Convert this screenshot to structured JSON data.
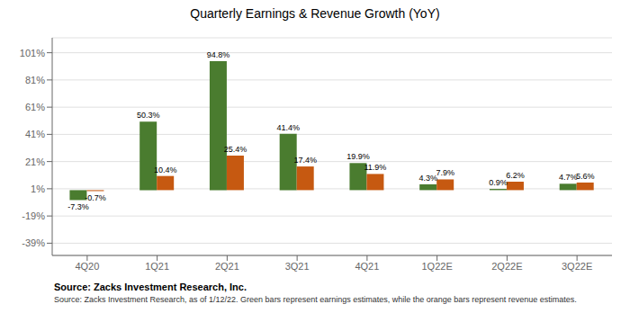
{
  "chart_data": {
    "type": "bar",
    "title": "Quarterly Earnings & Revenue Growth (YoY)",
    "categories": [
      "4Q20",
      "1Q21",
      "2Q21",
      "3Q21",
      "4Q21",
      "1Q22E",
      "2Q22E",
      "3Q22E"
    ],
    "series": [
      {
        "color": "#4a7c2f",
        "values": [
          -7.3,
          50.3,
          94.8,
          41.4,
          19.9,
          4.3,
          0.9,
          4.7
        ],
        "value_labels": [
          "-7.3%",
          "50.3%",
          "94.8%",
          "41.4%",
          "19.9%",
          "4.3%",
          "0.9%",
          "4.7%"
        ]
      },
      {
        "color": "#c65911",
        "values": [
          -0.7,
          10.4,
          25.4,
          17.4,
          11.9,
          7.9,
          6.2,
          5.6
        ],
        "value_labels": [
          "-0.7%",
          "10.4%",
          "25.4%",
          "17.4%",
          "11.9%",
          "7.9%",
          "6.2%",
          "5.6%"
        ]
      }
    ],
    "ylim": [
      -48,
      112
    ],
    "yticks": [
      {
        "value": -39,
        "label": "-39%"
      },
      {
        "value": -19,
        "label": "-19%"
      },
      {
        "value": 1,
        "label": "1%"
      },
      {
        "value": 21,
        "label": "21%"
      },
      {
        "value": 41,
        "label": "41%"
      },
      {
        "value": 61,
        "label": "61%"
      },
      {
        "value": 81,
        "label": "81%"
      },
      {
        "value": 101,
        "label": "101%"
      }
    ],
    "grid": true,
    "data_labels": true,
    "annotations": [
      "Source: Zacks Investment Research, Inc.",
      "Source: Zacks Investment Research, as of 1/12/22. Green bars represent earnings estimates, while the orange bars represent revenue estimates."
    ]
  }
}
